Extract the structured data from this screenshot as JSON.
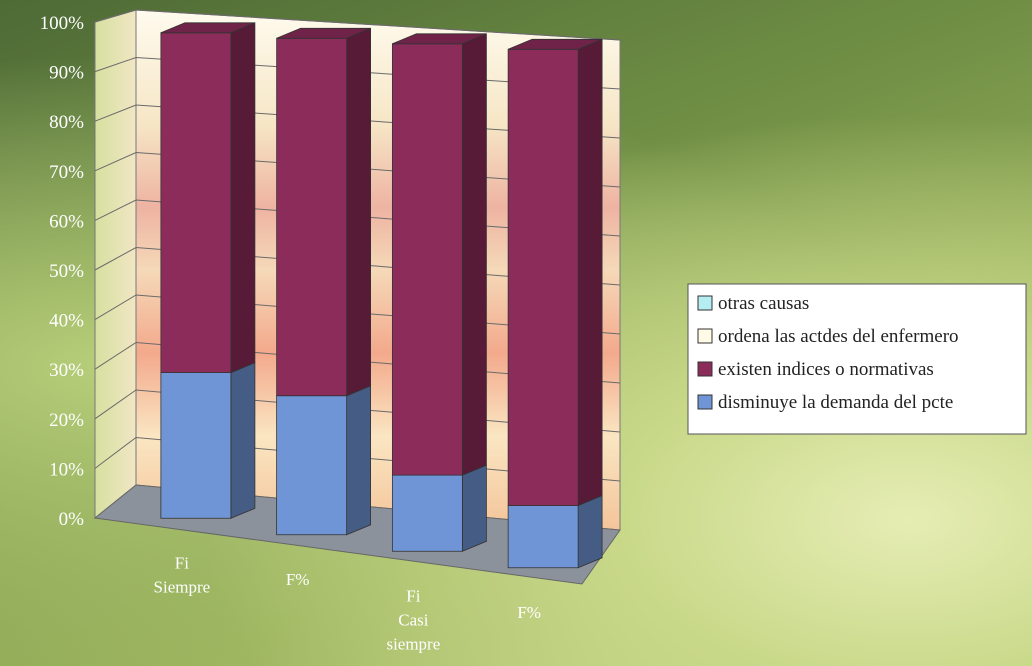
{
  "chart_data": {
    "type": "bar",
    "stacked": "percent",
    "three_d": true,
    "title": "",
    "xlabel": "",
    "ylabel": "",
    "ylim": [
      0,
      100
    ],
    "y_ticks": [
      "0%",
      "10%",
      "20%",
      "30%",
      "40%",
      "50%",
      "60%",
      "70%",
      "80%",
      "90%",
      "100%"
    ],
    "categories": [
      [
        "Fi",
        "Siempre"
      ],
      [
        "F%"
      ],
      [
        "Fi",
        "Casi",
        "siempre"
      ],
      [
        "F%"
      ]
    ],
    "series": [
      {
        "name": "disminuye la demanda del pcte",
        "color": "#6f95d6",
        "values": [
          30,
          28,
          15,
          12
        ]
      },
      {
        "name": "existen indices o normativas",
        "color": "#8c2c5a",
        "values": [
          70,
          72,
          85,
          88
        ]
      },
      {
        "name": "ordena las actdes del enfermero",
        "color": "#fffbe6",
        "values": [
          0,
          0,
          0,
          0
        ]
      },
      {
        "name": "otras causas",
        "color": "#b5eef2",
        "values": [
          0,
          0,
          0,
          0
        ]
      }
    ],
    "legend": {
      "position": "right"
    },
    "grid": true
  }
}
